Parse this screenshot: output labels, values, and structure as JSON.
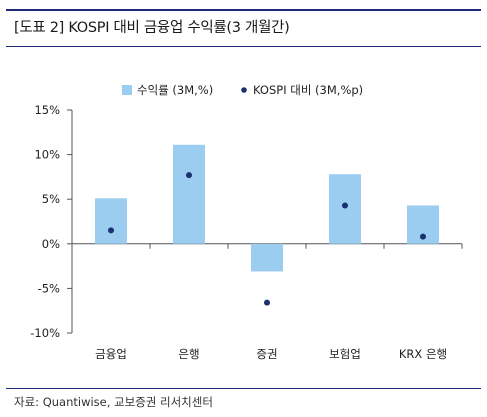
{
  "figure": {
    "title": "[도표 2] KOSPI 대비 금융업 수익률(3 개월간)",
    "source": "자료: Quantiwise, 교보증권 리서치센터"
  },
  "colors": {
    "bar": "#9bcdf0",
    "dot": "#1c2f6e",
    "rule": "#1f2a78",
    "axis": "#555555"
  },
  "chart_data": {
    "type": "bar",
    "categories": [
      "금융업",
      "은행",
      "증권",
      "보험업",
      "KRX 은행"
    ],
    "series": [
      {
        "name": "수익률 (3M,%)",
        "type": "bar",
        "values": [
          5.1,
          11.1,
          -3.1,
          7.8,
          4.3
        ]
      },
      {
        "name": "KOSPI 대비 (3M,%p)",
        "type": "scatter",
        "values": [
          1.5,
          7.7,
          -6.6,
          4.3,
          0.8
        ]
      }
    ],
    "ylim": [
      -10,
      15
    ],
    "yticks": [
      15,
      10,
      5,
      0,
      -5,
      -10
    ],
    "ytick_labels": [
      "15%",
      "10%",
      "5%",
      "0%",
      "-5%",
      "-10%"
    ],
    "legend": "top-center",
    "grid": false
  }
}
